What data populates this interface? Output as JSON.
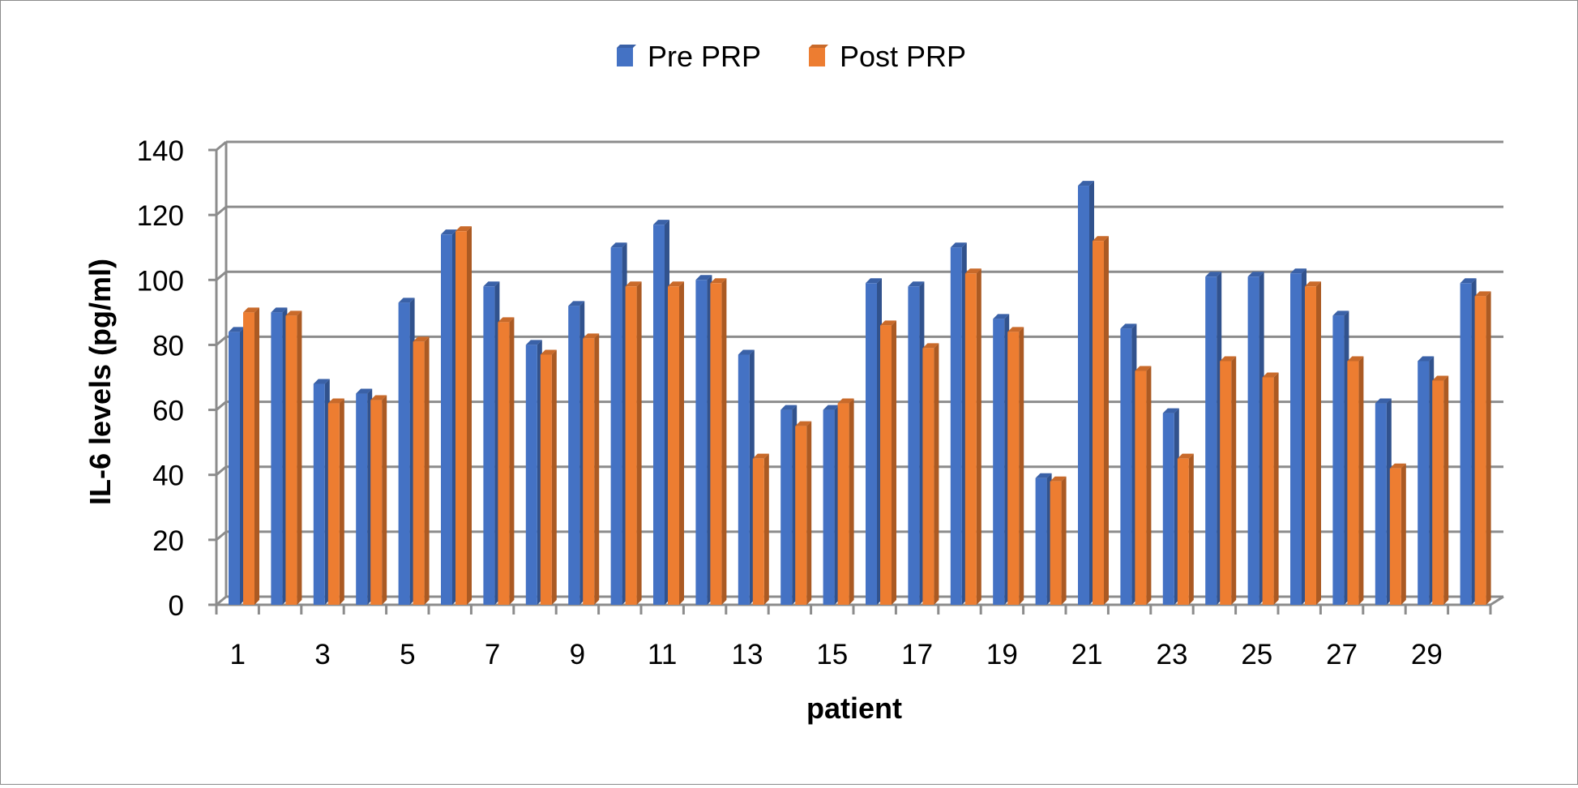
{
  "chart_data": {
    "type": "bar",
    "title": "",
    "xlabel": "patient",
    "ylabel": "IL-6 levels (pg/ml)",
    "ylim": [
      0,
      140
    ],
    "yticks": [
      0,
      20,
      40,
      60,
      80,
      100,
      120,
      140
    ],
    "categories": [
      "1",
      "2",
      "3",
      "4",
      "5",
      "6",
      "7",
      "8",
      "9",
      "10",
      "11",
      "12",
      "13",
      "14",
      "15",
      "16",
      "17",
      "18",
      "19",
      "20",
      "21",
      "22",
      "23",
      "24",
      "25",
      "26",
      "27",
      "28",
      "29",
      "30"
    ],
    "xtick_labels": [
      "1",
      "",
      "3",
      "",
      "5",
      "",
      "7",
      "",
      "9",
      "",
      "11",
      "",
      "13",
      "",
      "15",
      "",
      "17",
      "",
      "19",
      "",
      "21",
      "",
      "23",
      "",
      "25",
      "",
      "27",
      "",
      "29",
      ""
    ],
    "series": [
      {
        "name": "Pre PRP",
        "color": "#4472c4",
        "values": [
          84,
          90,
          68,
          65,
          93,
          114,
          98,
          80,
          92,
          110,
          117,
          100,
          77,
          60,
          60,
          99,
          98,
          110,
          88,
          39,
          129,
          85,
          59,
          101,
          101,
          102,
          89,
          62,
          75,
          99
        ]
      },
      {
        "name": "Post PRP",
        "color": "#ed7d31",
        "values": [
          90,
          89,
          62,
          63,
          81,
          115,
          87,
          77,
          82,
          98,
          98,
          99,
          45,
          55,
          62,
          86,
          79,
          102,
          84,
          38,
          112,
          72,
          45,
          75,
          70,
          98,
          75,
          42,
          69,
          95
        ]
      }
    ],
    "legend_position": "top-center",
    "grid": true
  }
}
